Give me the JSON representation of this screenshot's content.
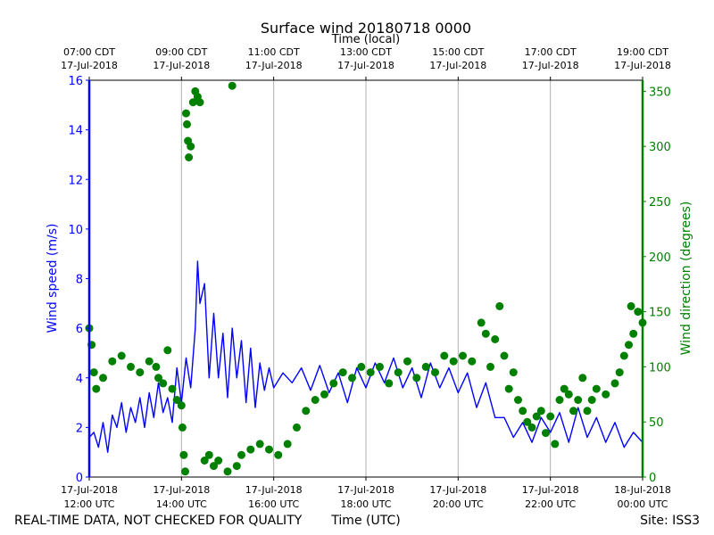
{
  "chart_data": {
    "type": "line",
    "title": "Surface wind 20180718 0000",
    "top_axis_label": "Time (local)",
    "xlabel": "Time (UTC)",
    "ylabel_left": "Wind speed (m/s)",
    "ylabel_right": "Wind direction (degrees)",
    "footer_left": "REAL-TIME DATA, NOT CHECKED FOR QUALITY",
    "footer_right": "Site: ISS3",
    "x_range_hours_utc": [
      12,
      24
    ],
    "ylim_left": [
      0,
      16
    ],
    "ylim_right": [
      0,
      360
    ],
    "colors": {
      "speed": "#0000ff",
      "direction": "#008000",
      "grid": "#b0b0b0"
    },
    "bottom_ticks": [
      {
        "hour": 12,
        "line1": "17-Jul-2018",
        "line2": "12:00 UTC"
      },
      {
        "hour": 14,
        "line1": "17-Jul-2018",
        "line2": "14:00 UTC"
      },
      {
        "hour": 16,
        "line1": "17-Jul-2018",
        "line2": "16:00 UTC"
      },
      {
        "hour": 18,
        "line1": "17-Jul-2018",
        "line2": "18:00 UTC"
      },
      {
        "hour": 20,
        "line1": "17-Jul-2018",
        "line2": "20:00 UTC"
      },
      {
        "hour": 22,
        "line1": "17-Jul-2018",
        "line2": "22:00 UTC"
      },
      {
        "hour": 24,
        "line1": "18-Jul-2018",
        "line2": "00:00 UTC"
      }
    ],
    "top_ticks": [
      {
        "hour": 12,
        "line1": "07:00 CDT",
        "line2": "17-Jul-2018"
      },
      {
        "hour": 14,
        "line1": "09:00 CDT",
        "line2": "17-Jul-2018"
      },
      {
        "hour": 16,
        "line1": "11:00 CDT",
        "line2": "17-Jul-2018"
      },
      {
        "hour": 18,
        "line1": "13:00 CDT",
        "line2": "17-Jul-2018"
      },
      {
        "hour": 20,
        "line1": "15:00 CDT",
        "line2": "17-Jul-2018"
      },
      {
        "hour": 22,
        "line1": "17:00 CDT",
        "line2": "17-Jul-2018"
      },
      {
        "hour": 24,
        "line1": "19:00 CDT",
        "line2": "17-Jul-2018"
      }
    ],
    "left_ticks": [
      0,
      2,
      4,
      6,
      8,
      10,
      12,
      14,
      16
    ],
    "right_ticks": [
      0,
      50,
      100,
      150,
      200,
      250,
      300,
      350
    ],
    "series": [
      {
        "name": "Wind speed",
        "axis": "left",
        "style": "line",
        "points": [
          [
            12.0,
            1.6
          ],
          [
            12.1,
            1.8
          ],
          [
            12.2,
            1.2
          ],
          [
            12.3,
            2.2
          ],
          [
            12.4,
            1.0
          ],
          [
            12.5,
            2.5
          ],
          [
            12.6,
            2.0
          ],
          [
            12.7,
            3.0
          ],
          [
            12.8,
            1.8
          ],
          [
            12.9,
            2.8
          ],
          [
            13.0,
            2.2
          ],
          [
            13.1,
            3.2
          ],
          [
            13.2,
            2.0
          ],
          [
            13.3,
            3.4
          ],
          [
            13.4,
            2.4
          ],
          [
            13.5,
            3.8
          ],
          [
            13.6,
            2.6
          ],
          [
            13.7,
            3.2
          ],
          [
            13.8,
            2.2
          ],
          [
            13.9,
            4.4
          ],
          [
            14.0,
            3.0
          ],
          [
            14.1,
            4.8
          ],
          [
            14.2,
            3.6
          ],
          [
            14.3,
            6.0
          ],
          [
            14.35,
            8.7
          ],
          [
            14.4,
            7.0
          ],
          [
            14.5,
            7.8
          ],
          [
            14.6,
            4.0
          ],
          [
            14.7,
            6.6
          ],
          [
            14.8,
            4.0
          ],
          [
            14.9,
            5.8
          ],
          [
            15.0,
            3.2
          ],
          [
            15.1,
            6.0
          ],
          [
            15.2,
            4.0
          ],
          [
            15.3,
            5.5
          ],
          [
            15.4,
            3.0
          ],
          [
            15.5,
            5.2
          ],
          [
            15.6,
            2.8
          ],
          [
            15.7,
            4.6
          ],
          [
            15.8,
            3.5
          ],
          [
            15.9,
            4.4
          ],
          [
            16.0,
            3.6
          ],
          [
            16.2,
            4.2
          ],
          [
            16.4,
            3.8
          ],
          [
            16.6,
            4.4
          ],
          [
            16.8,
            3.5
          ],
          [
            17.0,
            4.5
          ],
          [
            17.2,
            3.4
          ],
          [
            17.4,
            4.2
          ],
          [
            17.6,
            3.0
          ],
          [
            17.8,
            4.4
          ],
          [
            18.0,
            3.6
          ],
          [
            18.2,
            4.6
          ],
          [
            18.4,
            3.8
          ],
          [
            18.6,
            4.8
          ],
          [
            18.8,
            3.6
          ],
          [
            19.0,
            4.4
          ],
          [
            19.2,
            3.2
          ],
          [
            19.4,
            4.6
          ],
          [
            19.6,
            3.6
          ],
          [
            19.8,
            4.4
          ],
          [
            20.0,
            3.4
          ],
          [
            20.2,
            4.2
          ],
          [
            20.4,
            2.8
          ],
          [
            20.6,
            3.8
          ],
          [
            20.8,
            2.4
          ],
          [
            21.0,
            2.4
          ],
          [
            21.2,
            1.6
          ],
          [
            21.4,
            2.2
          ],
          [
            21.6,
            1.4
          ],
          [
            21.8,
            2.4
          ],
          [
            22.0,
            1.8
          ],
          [
            22.2,
            2.6
          ],
          [
            22.4,
            1.4
          ],
          [
            22.6,
            2.8
          ],
          [
            22.8,
            1.6
          ],
          [
            23.0,
            2.4
          ],
          [
            23.2,
            1.4
          ],
          [
            23.4,
            2.2
          ],
          [
            23.6,
            1.2
          ],
          [
            23.8,
            1.8
          ],
          [
            24.0,
            1.4
          ]
        ]
      },
      {
        "name": "Wind direction",
        "axis": "right",
        "style": "scatter",
        "points": [
          [
            12.0,
            135
          ],
          [
            12.05,
            120
          ],
          [
            12.1,
            95
          ],
          [
            12.15,
            80
          ],
          [
            12.3,
            90
          ],
          [
            12.5,
            105
          ],
          [
            12.7,
            110
          ],
          [
            12.9,
            100
          ],
          [
            13.1,
            95
          ],
          [
            13.3,
            105
          ],
          [
            13.45,
            100
          ],
          [
            13.5,
            90
          ],
          [
            13.6,
            85
          ],
          [
            13.7,
            115
          ],
          [
            13.8,
            80
          ],
          [
            13.9,
            70
          ],
          [
            14.0,
            65
          ],
          [
            14.02,
            45
          ],
          [
            14.05,
            20
          ],
          [
            14.08,
            5
          ],
          [
            14.1,
            330
          ],
          [
            14.12,
            320
          ],
          [
            14.14,
            305
          ],
          [
            14.16,
            290
          ],
          [
            14.2,
            300
          ],
          [
            14.25,
            340
          ],
          [
            14.3,
            350
          ],
          [
            14.35,
            345
          ],
          [
            14.4,
            340
          ],
          [
            14.5,
            15
          ],
          [
            14.6,
            20
          ],
          [
            14.7,
            10
          ],
          [
            14.8,
            15
          ],
          [
            15.0,
            5
          ],
          [
            15.1,
            355
          ],
          [
            15.2,
            10
          ],
          [
            15.3,
            20
          ],
          [
            15.5,
            25
          ],
          [
            15.7,
            30
          ],
          [
            15.9,
            25
          ],
          [
            16.1,
            20
          ],
          [
            16.3,
            30
          ],
          [
            16.5,
            45
          ],
          [
            16.7,
            60
          ],
          [
            16.9,
            70
          ],
          [
            17.1,
            75
          ],
          [
            17.3,
            85
          ],
          [
            17.5,
            95
          ],
          [
            17.7,
            90
          ],
          [
            17.9,
            100
          ],
          [
            18.1,
            95
          ],
          [
            18.3,
            100
          ],
          [
            18.5,
            85
          ],
          [
            18.7,
            95
          ],
          [
            18.9,
            105
          ],
          [
            19.1,
            90
          ],
          [
            19.3,
            100
          ],
          [
            19.5,
            95
          ],
          [
            19.7,
            110
          ],
          [
            19.9,
            105
          ],
          [
            20.1,
            110
          ],
          [
            20.3,
            105
          ],
          [
            20.5,
            140
          ],
          [
            20.6,
            130
          ],
          [
            20.7,
            100
          ],
          [
            20.8,
            125
          ],
          [
            20.9,
            155
          ],
          [
            21.0,
            110
          ],
          [
            21.1,
            80
          ],
          [
            21.2,
            95
          ],
          [
            21.3,
            70
          ],
          [
            21.4,
            60
          ],
          [
            21.5,
            50
          ],
          [
            21.6,
            45
          ],
          [
            21.7,
            55
          ],
          [
            21.8,
            60
          ],
          [
            21.9,
            40
          ],
          [
            22.0,
            55
          ],
          [
            22.1,
            30
          ],
          [
            22.2,
            70
          ],
          [
            22.3,
            80
          ],
          [
            22.4,
            75
          ],
          [
            22.5,
            60
          ],
          [
            22.6,
            70
          ],
          [
            22.7,
            90
          ],
          [
            22.8,
            60
          ],
          [
            22.9,
            70
          ],
          [
            23.0,
            80
          ],
          [
            23.2,
            75
          ],
          [
            23.4,
            85
          ],
          [
            23.5,
            95
          ],
          [
            23.6,
            110
          ],
          [
            23.7,
            120
          ],
          [
            23.75,
            155
          ],
          [
            23.8,
            130
          ],
          [
            23.9,
            150
          ],
          [
            24.0,
            140
          ]
        ]
      }
    ]
  }
}
